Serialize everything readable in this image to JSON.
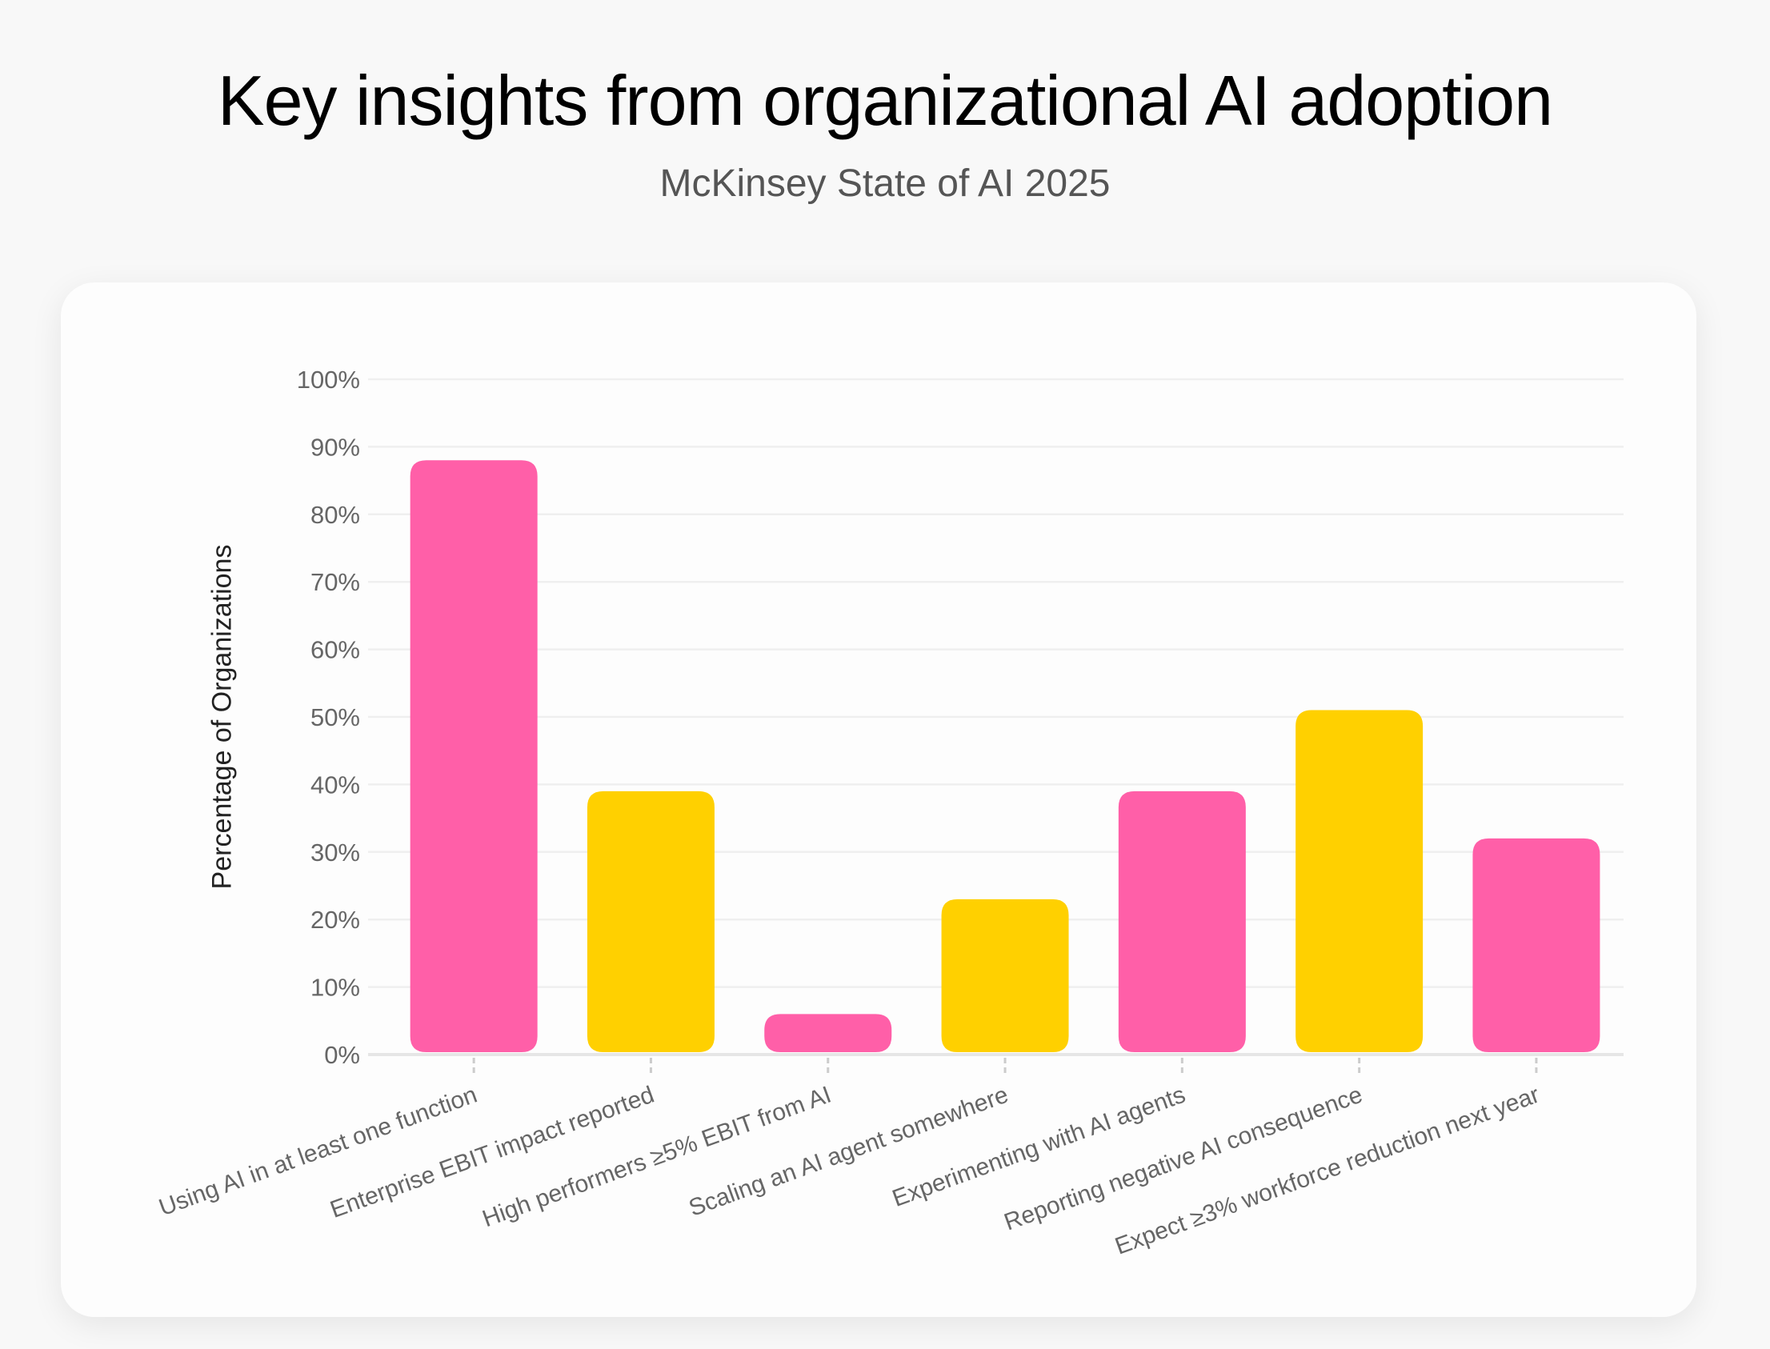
{
  "title": "Key insights from organizational AI adoption",
  "subtitle": "McKinsey State of AI 2025",
  "chart_data": {
    "type": "bar",
    "title": "Key insights from organizational AI adoption",
    "subtitle": "McKinsey State of AI 2025",
    "xlabel": "",
    "ylabel": "Percentage of Organizations",
    "ylim": [
      0,
      100
    ],
    "yticks": [
      "0%",
      "10%",
      "20%",
      "30%",
      "40%",
      "50%",
      "60%",
      "70%",
      "80%",
      "90%",
      "100%"
    ],
    "grid": true,
    "categories": [
      "Using AI in at least one function",
      "Enterprise EBIT impact reported",
      "High performers ≥5% EBIT from AI",
      "Scaling an AI agent somewhere",
      "Experimenting with AI agents",
      "Reporting negative AI consequence",
      "Expect ≥3% workforce reduction next year"
    ],
    "values": [
      88,
      39,
      6,
      23,
      39,
      51,
      32
    ],
    "colors": [
      "#ff5fa8",
      "#ffd000",
      "#ff5fa8",
      "#ffd000",
      "#ff5fa8",
      "#ffd000",
      "#ff5fa8"
    ]
  }
}
